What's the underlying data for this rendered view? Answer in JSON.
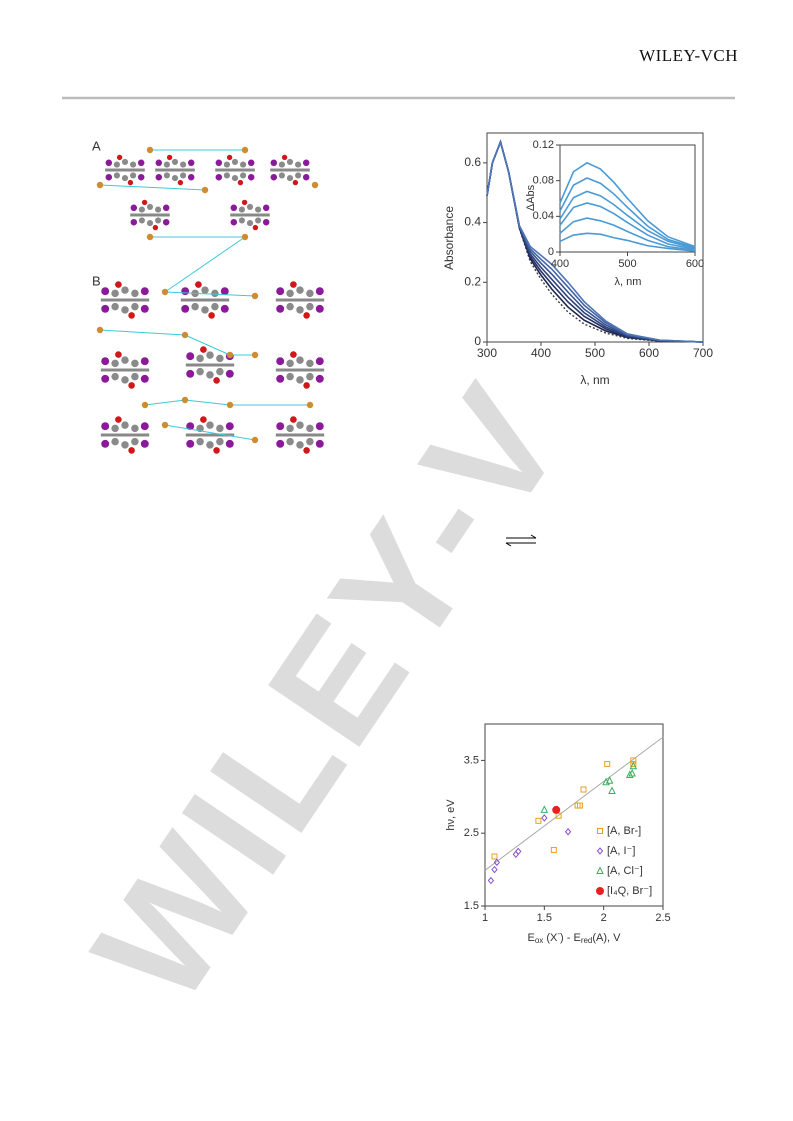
{
  "header": {
    "logo": "WILEY-VCH"
  },
  "figure": {
    "panel_labels": [
      "A",
      "B"
    ]
  },
  "watermark": "WILEY-V",
  "chart_data": [
    {
      "type": "line",
      "xlabel": "λ, nm",
      "ylabel": "Absorbance",
      "xlim": [
        300,
        700
      ],
      "xticks": [
        300,
        400,
        500,
        600,
        700
      ],
      "ylim": [
        0,
        0.7
      ],
      "yticks": [
        0,
        0.2,
        0.4,
        0.6
      ],
      "x": [
        300,
        310,
        325,
        340,
        360,
        380,
        400,
        420,
        450,
        480,
        520,
        560,
        620,
        700
      ],
      "series": [
        {
          "color": "#3a3a3a",
          "dashed": true,
          "values": [
            0.49,
            0.6,
            0.67,
            0.57,
            0.38,
            0.27,
            0.21,
            0.16,
            0.1,
            0.06,
            0.03,
            0.012,
            0.003,
            0
          ]
        },
        {
          "color": "#1c2550",
          "values": [
            0.49,
            0.6,
            0.67,
            0.57,
            0.382,
            0.279,
            0.224,
            0.177,
            0.117,
            0.073,
            0.037,
            0.015,
            0.004,
            0
          ]
        },
        {
          "color": "#253366",
          "values": [
            0.49,
            0.6,
            0.67,
            0.57,
            0.383,
            0.287,
            0.237,
            0.194,
            0.134,
            0.086,
            0.044,
            0.017,
            0.004,
            0
          ]
        },
        {
          "color": "#2e437c",
          "values": [
            0.49,
            0.6,
            0.67,
            0.57,
            0.385,
            0.295,
            0.25,
            0.21,
            0.15,
            0.098,
            0.05,
            0.02,
            0.005,
            0
          ]
        },
        {
          "color": "#375390",
          "values": [
            0.49,
            0.6,
            0.67,
            0.57,
            0.387,
            0.304,
            0.264,
            0.227,
            0.167,
            0.11,
            0.057,
            0.022,
            0.005,
            0
          ]
        },
        {
          "color": "#4264a4",
          "values": [
            0.49,
            0.6,
            0.67,
            0.57,
            0.388,
            0.312,
            0.277,
            0.244,
            0.184,
            0.123,
            0.064,
            0.025,
            0.006,
            0
          ]
        },
        {
          "color": "#4e76b6",
          "values": [
            0.49,
            0.6,
            0.67,
            0.57,
            0.39,
            0.32,
            0.29,
            0.26,
            0.2,
            0.135,
            0.07,
            0.027,
            0.006,
            0
          ]
        }
      ]
    },
    {
      "type": "line",
      "xlabel": "λ, nm",
      "ylabel": "ΔAbs",
      "xlim": [
        400,
        600
      ],
      "xticks": [
        400,
        500,
        600
      ],
      "ylim": [
        0,
        0.12
      ],
      "yticks": [
        0,
        0.04,
        0.08,
        0.12
      ],
      "x": [
        400,
        420,
        440,
        460,
        480,
        500,
        530,
        560,
        600
      ],
      "series": [
        {
          "color": "#4a9ad6",
          "values": [
            0.012,
            0.019,
            0.021,
            0.02,
            0.016,
            0.013,
            0.007,
            0.004,
            0.001
          ]
        },
        {
          "color": "#4a9ad6",
          "values": [
            0.021,
            0.034,
            0.038,
            0.035,
            0.03,
            0.023,
            0.013,
            0.006,
            0.002
          ]
        },
        {
          "color": "#4a9ad6",
          "values": [
            0.03,
            0.05,
            0.055,
            0.051,
            0.043,
            0.033,
            0.019,
            0.009,
            0.003
          ]
        },
        {
          "color": "#4a9ad6",
          "values": [
            0.037,
            0.061,
            0.068,
            0.063,
            0.053,
            0.041,
            0.024,
            0.012,
            0.004
          ]
        },
        {
          "color": "#4a9ad6",
          "values": [
            0.046,
            0.075,
            0.083,
            0.077,
            0.065,
            0.05,
            0.029,
            0.014,
            0.005
          ]
        },
        {
          "color": "#4a9ad6",
          "values": [
            0.055,
            0.09,
            0.1,
            0.093,
            0.078,
            0.06,
            0.035,
            0.017,
            0.006
          ]
        }
      ]
    },
    {
      "type": "scatter",
      "ylabel": "hν, eV",
      "xlabel_parts": [
        "E",
        "ox",
        " (X",
        "-",
        ") - E",
        "red",
        "(A), V"
      ],
      "xlim": [
        1,
        2.5
      ],
      "xticks": [
        1,
        1.5,
        2,
        2.5
      ],
      "ylim": [
        1.5,
        4
      ],
      "yticks": [
        1.5,
        2.5,
        3.5
      ],
      "trendline": {
        "color": "#aaaaaa",
        "x": [
          1,
          2.5
        ],
        "y": [
          1.99,
          3.82
        ]
      },
      "series": [
        {
          "name": "[A, Br-]",
          "marker": "square",
          "color": "#e8a020",
          "x": [
            1.08,
            1.45,
            1.58,
            1.62,
            1.78,
            1.8,
            1.83,
            2.03,
            2.25,
            2.25
          ],
          "y": [
            2.18,
            2.67,
            2.27,
            2.74,
            2.88,
            2.88,
            3.1,
            3.45,
            3.5,
            3.45
          ]
        },
        {
          "name": "[A, I⁻]",
          "marker": "diamond",
          "color": "#8a4fd0",
          "x": [
            1.05,
            1.08,
            1.1,
            1.26,
            1.28,
            1.5,
            1.7
          ],
          "y": [
            1.85,
            2.0,
            2.1,
            2.21,
            2.25,
            2.71,
            2.52
          ]
        },
        {
          "name": "[A, Cl⁻]",
          "marker": "triangle",
          "color": "#3ab060",
          "x": [
            1.5,
            2.02,
            2.05,
            2.07,
            2.22,
            2.24,
            2.25
          ],
          "y": [
            2.82,
            3.2,
            3.22,
            3.08,
            3.3,
            3.32,
            3.42
          ]
        },
        {
          "name": "[I₄Q, Br⁻]",
          "marker": "circle",
          "color": "#e82020",
          "x": [
            1.6
          ],
          "y": [
            2.82
          ]
        }
      ]
    }
  ]
}
